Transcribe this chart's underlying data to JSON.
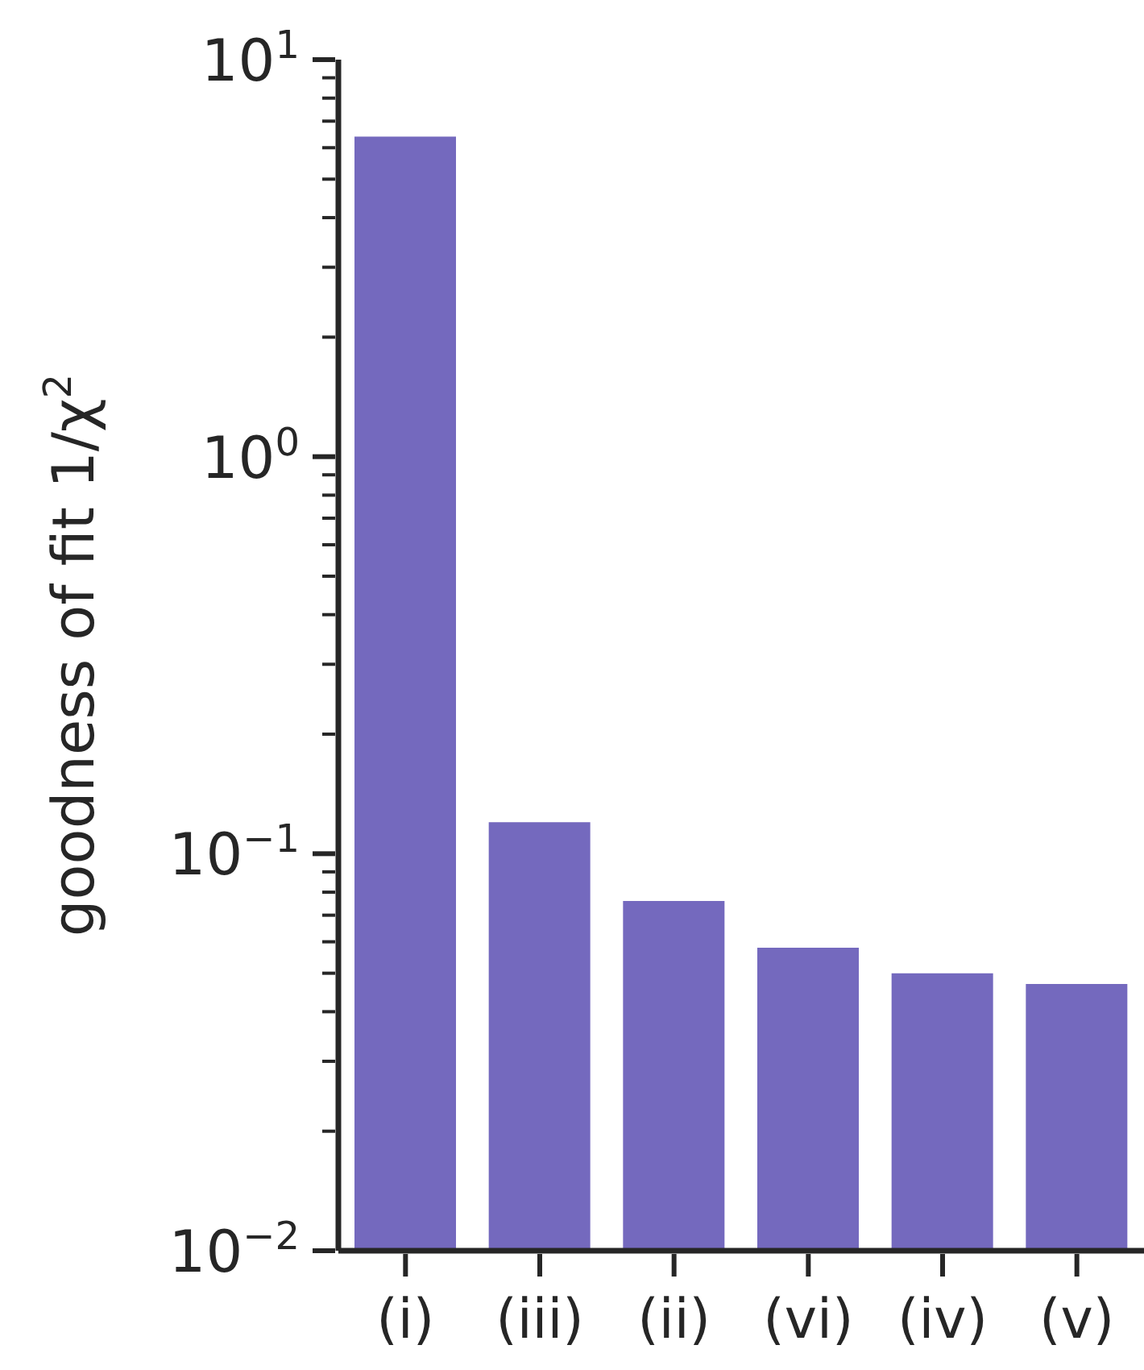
{
  "chart_data": {
    "type": "bar",
    "ylabel": "goodness of fit 1/χ$^{2}$",
    "categories": [
      "(i)",
      "(iii)",
      "(ii)",
      "(vi)",
      "(iv)",
      "(v)"
    ],
    "values": [
      6.4,
      0.12,
      0.076,
      0.058,
      0.05,
      0.047
    ],
    "color": "#7469be",
    "log": true,
    "grid": false,
    "legend": false,
    "ylim": [
      0.01,
      10
    ],
    "yticks": [
      {
        "value": 0.01,
        "label": "10$^{−2}$"
      },
      {
        "value": 0.02,
        "label": null
      },
      {
        "value": 0.03,
        "label": null
      },
      {
        "value": 0.04,
        "label": null
      },
      {
        "value": 0.05,
        "label": null
      },
      {
        "value": 0.06,
        "label": null
      },
      {
        "value": 0.07,
        "label": null
      },
      {
        "value": 0.08,
        "label": null
      },
      {
        "value": 0.09,
        "label": null
      },
      {
        "value": 0.1,
        "label": "10$^{−1}$"
      },
      {
        "value": 0.2,
        "label": null
      },
      {
        "value": 0.3,
        "label": null
      },
      {
        "value": 0.4,
        "label": null
      },
      {
        "value": 0.5,
        "label": null
      },
      {
        "value": 0.6,
        "label": null
      },
      {
        "value": 0.7,
        "label": null
      },
      {
        "value": 0.8,
        "label": null
      },
      {
        "value": 0.9,
        "label": null
      },
      {
        "value": 1,
        "label": "10$^{0}$"
      },
      {
        "value": 2,
        "label": null
      },
      {
        "value": 3,
        "label": null
      },
      {
        "value": 4,
        "label": null
      },
      {
        "value": 5,
        "label": null
      },
      {
        "value": 6,
        "label": null
      },
      {
        "value": 7,
        "label": null
      },
      {
        "value": 8,
        "label": null
      },
      {
        "value": 9,
        "label": null
      },
      {
        "value": 10,
        "label": "10$^{1}$"
      }
    ]
  }
}
